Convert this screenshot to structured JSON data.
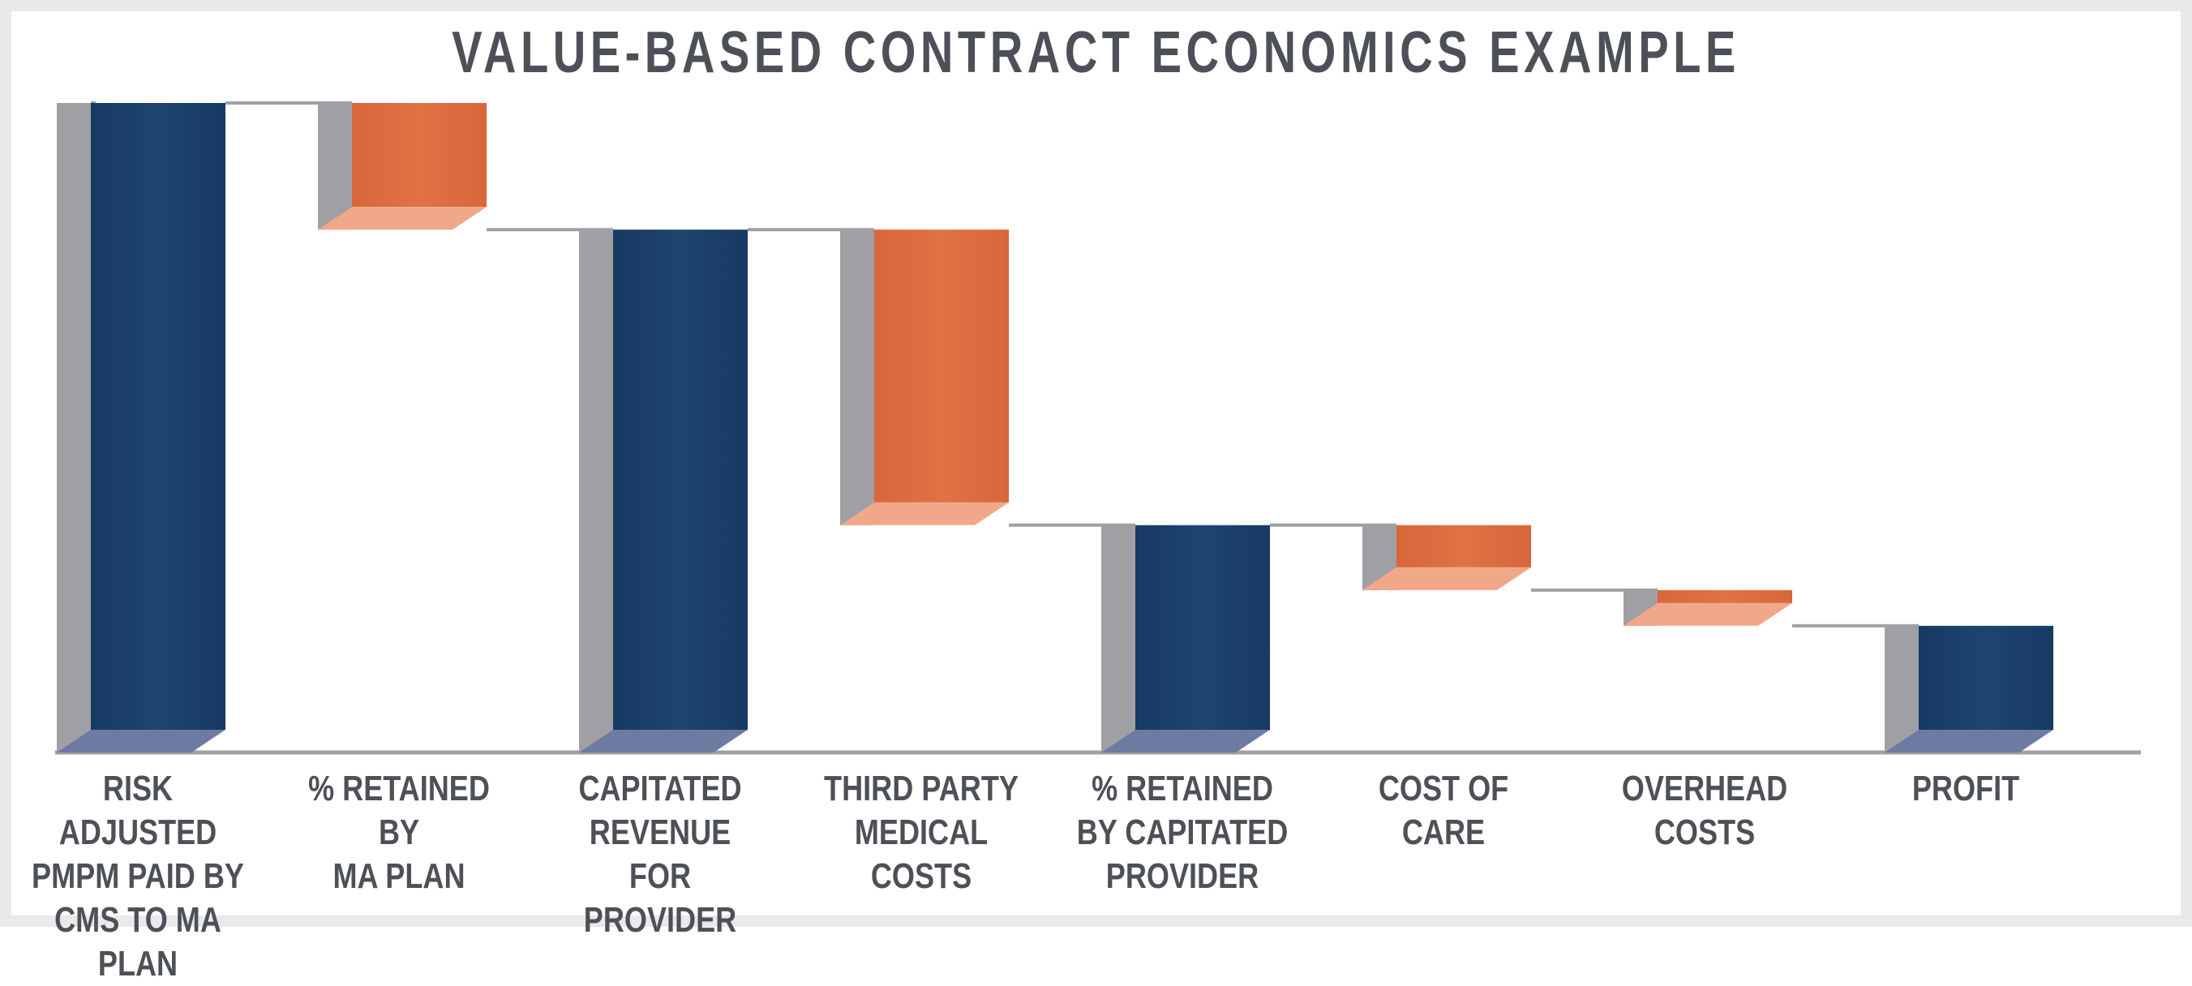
{
  "chart_data": {
    "type": "waterfall",
    "title": "VALUE-BASED CONTRACT ECONOMICS EXAMPLE",
    "categories": [
      "RISK ADJUSTED\nPMPM PAID BY\nCMS TO MA PLAN",
      "% RETAINED\nBY\nMA PLAN",
      "CAPITATED\nREVENUE\nFOR PROVIDER",
      "THIRD PARTY\nMEDICAL COSTS",
      "% RETAINED\nBY CAPITATED\nPROVIDER",
      "COST OF\nCARE",
      "OVERHEAD\nCOSTS",
      "PROFIT"
    ],
    "bars": [
      {
        "kind": "total",
        "start": 0,
        "end": 100
      },
      {
        "kind": "decrease",
        "start": 100,
        "end": 80.5
      },
      {
        "kind": "total",
        "start": 0,
        "end": 80.5
      },
      {
        "kind": "decrease",
        "start": 80.5,
        "end": 35
      },
      {
        "kind": "total",
        "start": 0,
        "end": 35
      },
      {
        "kind": "decrease",
        "start": 35,
        "end": 25
      },
      {
        "kind": "decrease",
        "start": 25,
        "end": 19.5
      },
      {
        "kind": "total",
        "start": 0,
        "end": 19.5
      }
    ],
    "ylim": [
      0,
      100
    ],
    "xlabel": "",
    "ylabel": "",
    "colors": {
      "total": "#1f4470",
      "total_floor": "#6d7ba3",
      "decrease": "#e07244",
      "decrease_floor": "#f0a888",
      "side": "#a0a0a4",
      "axis": "#9fa0a3",
      "connector": "#9fa0a3"
    }
  }
}
